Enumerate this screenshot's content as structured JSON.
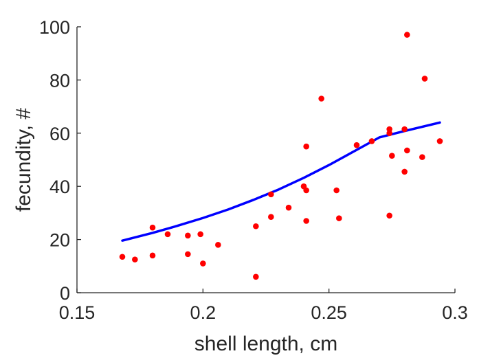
{
  "chart_data": {
    "type": "scatter",
    "title": "",
    "xlabel": "shell length, cm",
    "ylabel": "fecundity, #",
    "xlim": [
      0.15,
      0.3
    ],
    "ylim": [
      0,
      100
    ],
    "xticks": [
      0.15,
      0.2,
      0.25,
      0.3
    ],
    "xtick_labels": [
      "0.15",
      "0.2",
      "0.25",
      "0.3"
    ],
    "yticks": [
      0,
      20,
      40,
      60,
      80,
      100
    ],
    "ytick_labels": [
      "0",
      "20",
      "40",
      "60",
      "80",
      "100"
    ],
    "grid": false,
    "series": [
      {
        "type": "scatter",
        "color": "#ff0000",
        "points": [
          [
            0.168,
            13.5
          ],
          [
            0.173,
            12.5
          ],
          [
            0.18,
            14
          ],
          [
            0.18,
            24.5
          ],
          [
            0.186,
            22
          ],
          [
            0.194,
            21.5
          ],
          [
            0.194,
            14.5
          ],
          [
            0.199,
            22
          ],
          [
            0.2,
            11
          ],
          [
            0.206,
            18
          ],
          [
            0.221,
            25
          ],
          [
            0.221,
            6
          ],
          [
            0.227,
            37
          ],
          [
            0.227,
            28.5
          ],
          [
            0.234,
            32
          ],
          [
            0.24,
            40
          ],
          [
            0.241,
            38.5
          ],
          [
            0.241,
            55
          ],
          [
            0.241,
            27
          ],
          [
            0.247,
            73
          ],
          [
            0.253,
            38.5
          ],
          [
            0.254,
            28
          ],
          [
            0.261,
            55.5
          ],
          [
            0.267,
            57
          ],
          [
            0.274,
            61.5
          ],
          [
            0.274,
            60
          ],
          [
            0.274,
            29
          ],
          [
            0.275,
            51.5
          ],
          [
            0.28,
            61.5
          ],
          [
            0.28,
            45.5
          ],
          [
            0.281,
            97
          ],
          [
            0.281,
            53.5
          ],
          [
            0.287,
            51
          ],
          [
            0.288,
            80.5
          ],
          [
            0.294,
            57
          ]
        ]
      },
      {
        "type": "line",
        "color": "#0000ff",
        "points": [
          [
            0.168,
            19.6
          ],
          [
            0.18,
            22.5
          ],
          [
            0.19,
            25.2
          ],
          [
            0.2,
            28.1
          ],
          [
            0.21,
            31.3
          ],
          [
            0.22,
            34.9
          ],
          [
            0.23,
            38.8
          ],
          [
            0.24,
            43.2
          ],
          [
            0.25,
            48.0
          ],
          [
            0.26,
            53.2
          ],
          [
            0.27,
            58.4
          ],
          [
            0.28,
            60.8
          ],
          [
            0.294,
            64.0
          ]
        ]
      }
    ]
  }
}
